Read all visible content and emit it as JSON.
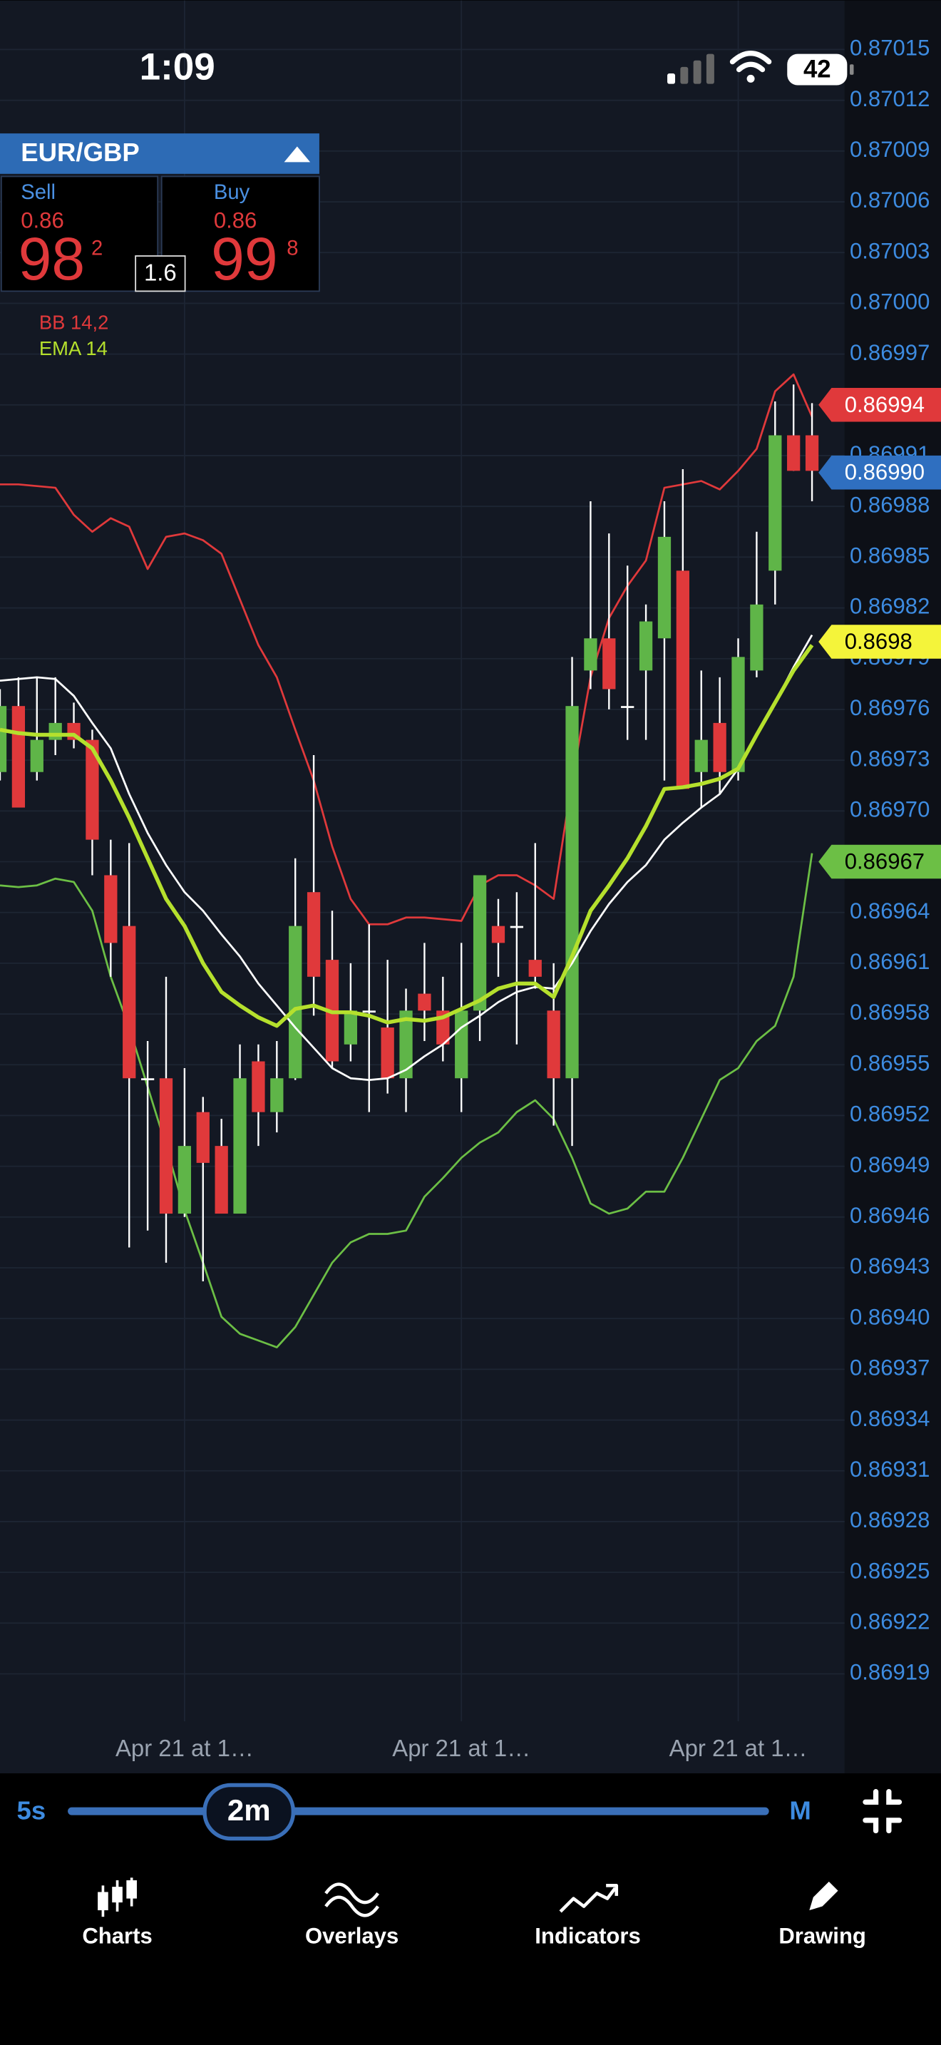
{
  "status_bar": {
    "time": "1:09",
    "battery": "42"
  },
  "instrument": {
    "symbol": "EUR/GBP",
    "sell": {
      "label": "Sell",
      "prefix": "0.86",
      "big": "98",
      "pip": "2"
    },
    "buy": {
      "label": "Buy",
      "prefix": "0.86",
      "big": "99",
      "pip": "8"
    },
    "spread": "1.6"
  },
  "chart_data": {
    "type": "candlestick",
    "categories": [
      null,
      null,
      null,
      null,
      null,
      null,
      null,
      null,
      null,
      null,
      "Apr 21 at 1…",
      null,
      null,
      null,
      null,
      null,
      null,
      null,
      null,
      null,
      null,
      null,
      null,
      null,
      null,
      "Apr 21 at 1…",
      null,
      null,
      null,
      null,
      null,
      null,
      null,
      null,
      null,
      null,
      null,
      null,
      null,
      null,
      "Apr 21 at 1…",
      null,
      null,
      null,
      null
    ],
    "open": [
      0.869723,
      0.869762,
      0.869723,
      0.869742,
      0.869752,
      0.869742,
      0.869662,
      0.869632,
      0.869542,
      0.869542,
      0.869462,
      0.869522,
      0.869502,
      0.869462,
      0.869552,
      0.869522,
      0.869542,
      0.869652,
      0.869612,
      0.869562,
      0.869582,
      0.869572,
      0.869542,
      0.869592,
      0.869582,
      0.869542,
      0.869582,
      0.869632,
      0.869632,
      0.869612,
      0.869582,
      0.869542,
      0.869783,
      0.869802,
      0.869762,
      0.869783,
      0.869802,
      0.869842,
      0.869723,
      0.869752,
      0.869723,
      0.869783,
      0.869842,
      0.869922,
      0.869922
    ],
    "high": [
      0.869772,
      0.869779,
      0.869779,
      0.869779,
      0.869764,
      0.869748,
      0.869683,
      0.869681,
      0.869564,
      0.869602,
      0.869548,
      0.869531,
      0.869518,
      0.869562,
      0.869562,
      0.869564,
      0.869672,
      0.869733,
      0.869641,
      0.86961,
      0.869633,
      0.869612,
      0.869595,
      0.869622,
      0.869602,
      0.869622,
      0.869662,
      0.869648,
      0.869652,
      0.869681,
      0.86961,
      0.869791,
      0.869883,
      0.869864,
      0.869845,
      0.869822,
      0.869883,
      0.869902,
      0.869783,
      0.869779,
      0.869802,
      0.869865,
      0.869942,
      0.869952,
      0.869941
    ],
    "low": [
      0.869718,
      0.869702,
      0.869718,
      0.869733,
      0.869737,
      0.869662,
      0.869602,
      0.869442,
      0.869452,
      0.869433,
      0.86946,
      0.869422,
      0.869462,
      0.869462,
      0.869502,
      0.86951,
      0.869541,
      0.869579,
      0.869548,
      0.869552,
      0.869522,
      0.869533,
      0.869522,
      0.869564,
      0.869552,
      0.869522,
      0.869564,
      0.869602,
      0.869562,
      0.869595,
      0.869514,
      0.869502,
      0.869772,
      0.86976,
      0.869742,
      0.869742,
      0.869718,
      0.869713,
      0.869702,
      0.86971,
      0.869718,
      0.869779,
      0.869822,
      0.869901,
      0.869883
    ],
    "close": [
      0.869762,
      0.869702,
      0.869742,
      0.869752,
      0.869742,
      0.869683,
      0.869622,
      0.869542,
      0.869542,
      0.869462,
      0.869502,
      0.869492,
      0.869462,
      0.869542,
      0.869522,
      0.869542,
      0.869632,
      0.869602,
      0.869552,
      0.869582,
      0.869582,
      0.869542,
      0.869582,
      0.869582,
      0.869562,
      0.869582,
      0.869662,
      0.869622,
      0.869632,
      0.869602,
      0.869542,
      0.869762,
      0.869802,
      0.869772,
      0.869762,
      0.869812,
      0.869862,
      0.869713,
      0.869742,
      0.869723,
      0.869791,
      0.869822,
      0.869922,
      0.869901,
      0.869901
    ],
    "up_color": "#5fb548",
    "down_color": "#e0393b",
    "doji_color": "#ffffff",
    "bands": {
      "name": "BB 14,2",
      "color": "#e0393b",
      "middle_color": "#ffffff",
      "lower_color": "#6cbf45",
      "upper": [
        0.869893,
        0.869893,
        0.869892,
        0.869891,
        0.869875,
        0.869865,
        0.869873,
        0.869868,
        0.869843,
        0.869862,
        0.869864,
        0.86986,
        0.869852,
        0.869825,
        0.869798,
        0.869779,
        0.869748,
        0.869718,
        0.869679,
        0.869648,
        0.869633,
        0.869633,
        0.869637,
        0.869637,
        0.869636,
        0.869635,
        0.869656,
        0.869662,
        0.869662,
        0.869656,
        0.869648,
        0.869718,
        0.869779,
        0.869814,
        0.869833,
        0.869848,
        0.869891,
        0.869893,
        0.869895,
        0.86989,
        0.869901,
        0.869914,
        0.869948,
        0.869958,
        0.869933
      ],
      "middle": [
        0.869777,
        0.869778,
        0.869779,
        0.869778,
        0.869768,
        0.869752,
        0.869737,
        0.86971,
        0.869687,
        0.869668,
        0.869652,
        0.869641,
        0.869627,
        0.869614,
        0.869598,
        0.869585,
        0.869572,
        0.86956,
        0.869548,
        0.869542,
        0.869541,
        0.869542,
        0.869547,
        0.869555,
        0.869562,
        0.869572,
        0.869579,
        0.869587,
        0.869593,
        0.869596,
        0.869595,
        0.86961,
        0.869629,
        0.869645,
        0.869658,
        0.869668,
        0.869683,
        0.869693,
        0.869702,
        0.86971,
        0.869725,
        0.869745,
        0.869764,
        0.869785,
        0.869804
      ],
      "lower": [
        0.869656,
        0.869655,
        0.869656,
        0.86966,
        0.869658,
        0.869641,
        0.869602,
        0.869572,
        0.869537,
        0.869502,
        0.869464,
        0.869433,
        0.869401,
        0.869391,
        0.869387,
        0.869383,
        0.869395,
        0.869414,
        0.869433,
        0.869445,
        0.86945,
        0.86945,
        0.869452,
        0.869472,
        0.869483,
        0.869495,
        0.869504,
        0.86951,
        0.869522,
        0.869529,
        0.869518,
        0.869495,
        0.869468,
        0.869462,
        0.869465,
        0.869475,
        0.869475,
        0.869495,
        0.869518,
        0.869541,
        0.869548,
        0.869564,
        0.869573,
        0.869602,
        0.869675
      ]
    },
    "ema": {
      "name": "EMA 14",
      "color": "#b5e02d",
      "values": [
        0.869748,
        0.869746,
        0.869745,
        0.869745,
        0.869745,
        0.869737,
        0.869718,
        0.869696,
        0.869672,
        0.869648,
        0.869632,
        0.86961,
        0.869593,
        0.869585,
        0.869578,
        0.869573,
        0.869583,
        0.869585,
        0.869581,
        0.869581,
        0.869579,
        0.869575,
        0.869577,
        0.869576,
        0.869578,
        0.869583,
        0.869588,
        0.869595,
        0.869598,
        0.869598,
        0.86959,
        0.869614,
        0.869641,
        0.869656,
        0.869672,
        0.869691,
        0.869713,
        0.869714,
        0.869716,
        0.869719,
        0.869725,
        0.869745,
        0.869764,
        0.869783,
        0.869798
      ]
    },
    "ylim": [
      0.869162,
      0.870179
    ],
    "yticks": [
      0.87015,
      0.87012,
      0.87009,
      0.87006,
      0.87003,
      {
        "value": 0.87,
        "label": "0.87000"
      },
      0.86997,
      0.86994,
      0.86991,
      0.86988,
      0.86985,
      0.86982,
      0.86979,
      0.86976,
      0.86973,
      {
        "value": 0.8697,
        "label": "0.86970"
      },
      0.86967,
      0.86964,
      0.86961,
      0.86958,
      0.86955,
      0.86952,
      0.86949,
      0.86946,
      0.86943,
      {
        "value": 0.8694,
        "label": "0.86940"
      },
      0.86937,
      0.86934,
      0.86931,
      0.86928,
      0.86925,
      0.86922,
      0.86919
    ],
    "grid": true,
    "price_tags": [
      {
        "value": 0.8698,
        "color": "#f4f43a",
        "text_color": "#000000"
      },
      {
        "value": 0.86994,
        "color": "#e0393b",
        "text_color": "#ffffff"
      },
      {
        "value": 0.8699,
        "label": "0.86990",
        "color": "#2f6fc0",
        "text_color": "#ffffff"
      },
      {
        "value": 0.86967,
        "color": "#6cbf45",
        "text_color": "#000000"
      }
    ]
  },
  "timeframe": {
    "min": "5s",
    "current": "2m",
    "max": "M"
  },
  "tabs": [
    {
      "label": "Charts"
    },
    {
      "label": "Overlays"
    },
    {
      "label": "Indicators"
    },
    {
      "label": "Drawing"
    }
  ]
}
